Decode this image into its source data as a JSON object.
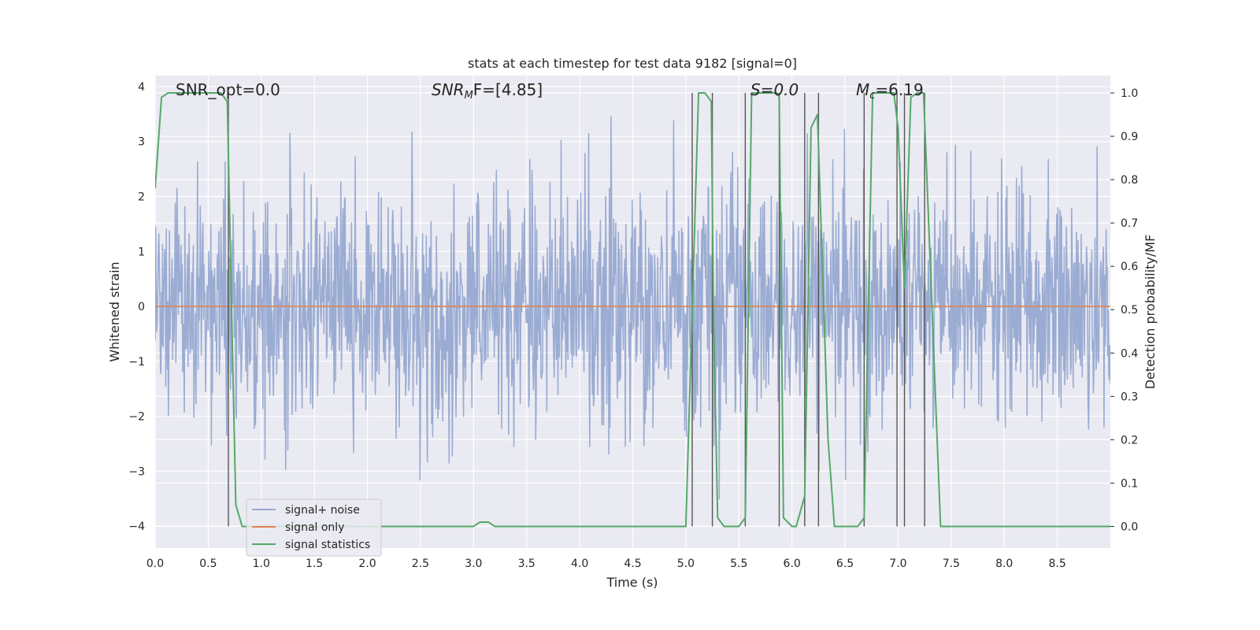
{
  "chart_data": {
    "type": "line",
    "title": "stats at each timestep for test data 9182 [signal=0]",
    "xlabel": "Time (s)",
    "ylabel": "Whitened strain",
    "ylabel_right": "Detection probability/MF",
    "xlim": [
      0.0,
      9.0
    ],
    "ylim": [
      -4.4,
      4.2
    ],
    "ylim_right": [
      -0.05,
      1.04
    ],
    "grid": true,
    "x_ticks": [
      "0.0",
      "0.5",
      "1.0",
      "1.5",
      "2.0",
      "2.5",
      "3.0",
      "3.5",
      "4.0",
      "4.5",
      "5.0",
      "5.5",
      "6.0",
      "6.5",
      "7.0",
      "7.5",
      "8.0",
      "8.5"
    ],
    "y_ticks": [
      "−4",
      "−3",
      "−2",
      "−1",
      "0",
      "1",
      "2",
      "3",
      "4"
    ],
    "y_ticks_right": [
      "0.0",
      "0.1",
      "0.2",
      "0.3",
      "0.4",
      "0.5",
      "0.6",
      "0.7",
      "0.8",
      "0.9",
      "1.0"
    ],
    "annotations": {
      "snr_opt": "SNR_opt=0.0",
      "snr_mf_prefix": "SNR",
      "snr_mf_sub": "M",
      "snr_mf_suffix": "F=[4.85]",
      "s": "S=0.0",
      "mc_prefix": "M",
      "mc_sub": "c",
      "mc_suffix": "=6.19"
    },
    "legend": {
      "position": "lower-left",
      "entries": [
        "signal+ noise",
        "signal only",
        "signal statistics"
      ]
    },
    "colors": {
      "noise": "#97a9d1",
      "signal": "#dd8452",
      "stats": "#55a868",
      "vlines": "#555555",
      "background": "#eaeaf2",
      "grid": "#ffffff"
    },
    "series": [
      {
        "name": "signal+ noise",
        "kind": "noise-trace",
        "sampling_rate_hz": 200,
        "duration_s": 9.0,
        "approx_range": [
          -3.6,
          3.45
        ]
      },
      {
        "name": "signal only",
        "x": [
          0.0,
          9.0
        ],
        "y": [
          0.0,
          0.0
        ]
      },
      {
        "name": "signal statistics",
        "axis": "right",
        "x": [
          0.0,
          0.06,
          0.12,
          0.62,
          0.68,
          0.72,
          0.76,
          0.82,
          3.0,
          3.06,
          3.14,
          3.2,
          3.4,
          3.46,
          5.0,
          5.06,
          5.12,
          5.18,
          5.24,
          5.26,
          5.3,
          5.36,
          5.5,
          5.56,
          5.62,
          5.7,
          5.86,
          5.88,
          5.92,
          6.0,
          6.04,
          6.12,
          6.18,
          6.24,
          6.34,
          6.4,
          6.5,
          6.62,
          6.68,
          6.76,
          6.96,
          7.0,
          7.06,
          7.12,
          7.18,
          7.24,
          7.32,
          7.4,
          9.0
        ],
        "y": [
          0.78,
          0.99,
          1.0,
          1.0,
          0.98,
          0.5,
          0.05,
          0.0,
          0.0,
          0.01,
          0.01,
          0.0,
          0.0,
          0.0,
          0.0,
          0.5,
          1.0,
          1.0,
          0.98,
          0.5,
          0.02,
          0.0,
          0.0,
          0.02,
          1.0,
          1.0,
          1.0,
          0.99,
          0.02,
          0.0,
          0.0,
          0.07,
          0.92,
          0.95,
          0.2,
          0.0,
          0.0,
          0.0,
          0.02,
          1.0,
          1.0,
          0.92,
          0.55,
          0.99,
          1.0,
          1.0,
          0.5,
          0.0,
          0.0
        ]
      }
    ],
    "vertical_lines_x": [
      0.69,
      5.06,
      5.25,
      5.56,
      5.88,
      6.12,
      6.25,
      6.68,
      6.99,
      7.06,
      7.25
    ]
  }
}
